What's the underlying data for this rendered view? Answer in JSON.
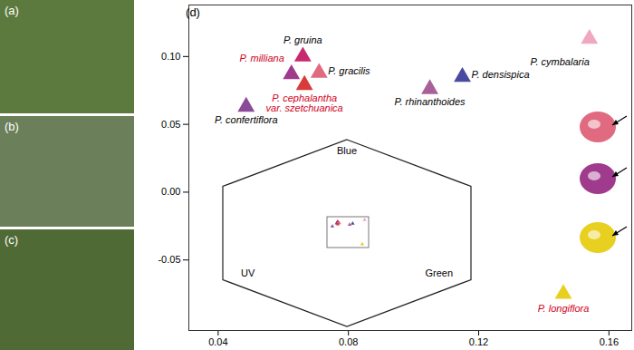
{
  "chart_data": {
    "type": "scatter",
    "panel_label": "(d)",
    "photo_labels": [
      "(a)",
      "(b)",
      "(c)"
    ],
    "names": [
      "P. gruina",
      "P. milliana",
      "P. gracilis",
      "P. cephalantha\nvar. szetchuanica",
      "P. confertiflora",
      "P. rhinanthoides",
      "P. densispica",
      "P. cymbalaria",
      "P. longiflora"
    ],
    "x": [
      0.066,
      0.0625,
      0.071,
      0.0665,
      0.0486,
      0.105,
      0.115,
      0.154,
      0.146
    ],
    "y": [
      0.1,
      0.087,
      0.088,
      0.079,
      0.063,
      0.076,
      0.085,
      0.113,
      -0.075
    ],
    "colors": [
      "#c8286e",
      "#a03a8c",
      "#e06a80",
      "#d93a3a",
      "#8a4a9a",
      "#a86098",
      "#4a4aa0",
      "#f0a8c0",
      "#e8d020"
    ],
    "label_colors": [
      "#000000",
      "#d0021b",
      "#000000",
      "#d0021b",
      "#000000",
      "#000000",
      "#000000",
      "#000000",
      "#d0021b"
    ],
    "marker": "triangle",
    "xlim": [
      0.031,
      0.167
    ],
    "xticks": [
      0.04,
      0.08,
      0.12,
      0.16
    ],
    "ylim": [
      -0.102,
      0.138
    ],
    "yticks": [
      {
        "value": -0.05,
        "label": "-0.05"
      },
      {
        "value": 0,
        "label": "0.00"
      },
      {
        "value": 0.05,
        "label": "0.05"
      },
      {
        "value": 0.1,
        "label": "0.10"
      }
    ],
    "inset": {
      "labels": [
        "Blue",
        "UV",
        "Green"
      ]
    }
  }
}
